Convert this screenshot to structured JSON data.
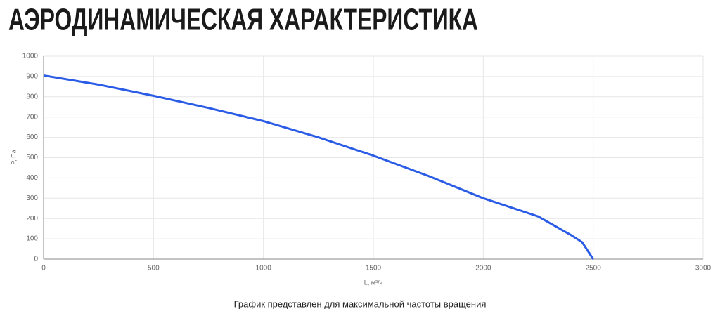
{
  "chart_data": {
    "type": "line",
    "title": "АЭРОДИНАМИЧЕСКАЯ ХАРАКТЕРИСТИКА",
    "x_label": "L, м³/ч",
    "y_label": "P, Па",
    "note": "График представлен для максимальной частоты вращения",
    "x": [
      0,
      250,
      500,
      750,
      1000,
      1250,
      1500,
      1750,
      2000,
      2250,
      2400,
      2450,
      2500
    ],
    "values": [
      905,
      860,
      805,
      745,
      680,
      600,
      510,
      410,
      300,
      210,
      118,
      83,
      0
    ],
    "color": "#2b5ce6",
    "xlim": [
      0,
      3000
    ],
    "xticks": [
      0,
      500,
      1000,
      1500,
      2000,
      2500,
      3000
    ],
    "ylim": [
      0,
      1000
    ],
    "yticks": [
      0,
      100,
      200,
      300,
      400,
      500,
      600,
      700,
      800,
      900,
      1000
    ],
    "grid": true
  }
}
